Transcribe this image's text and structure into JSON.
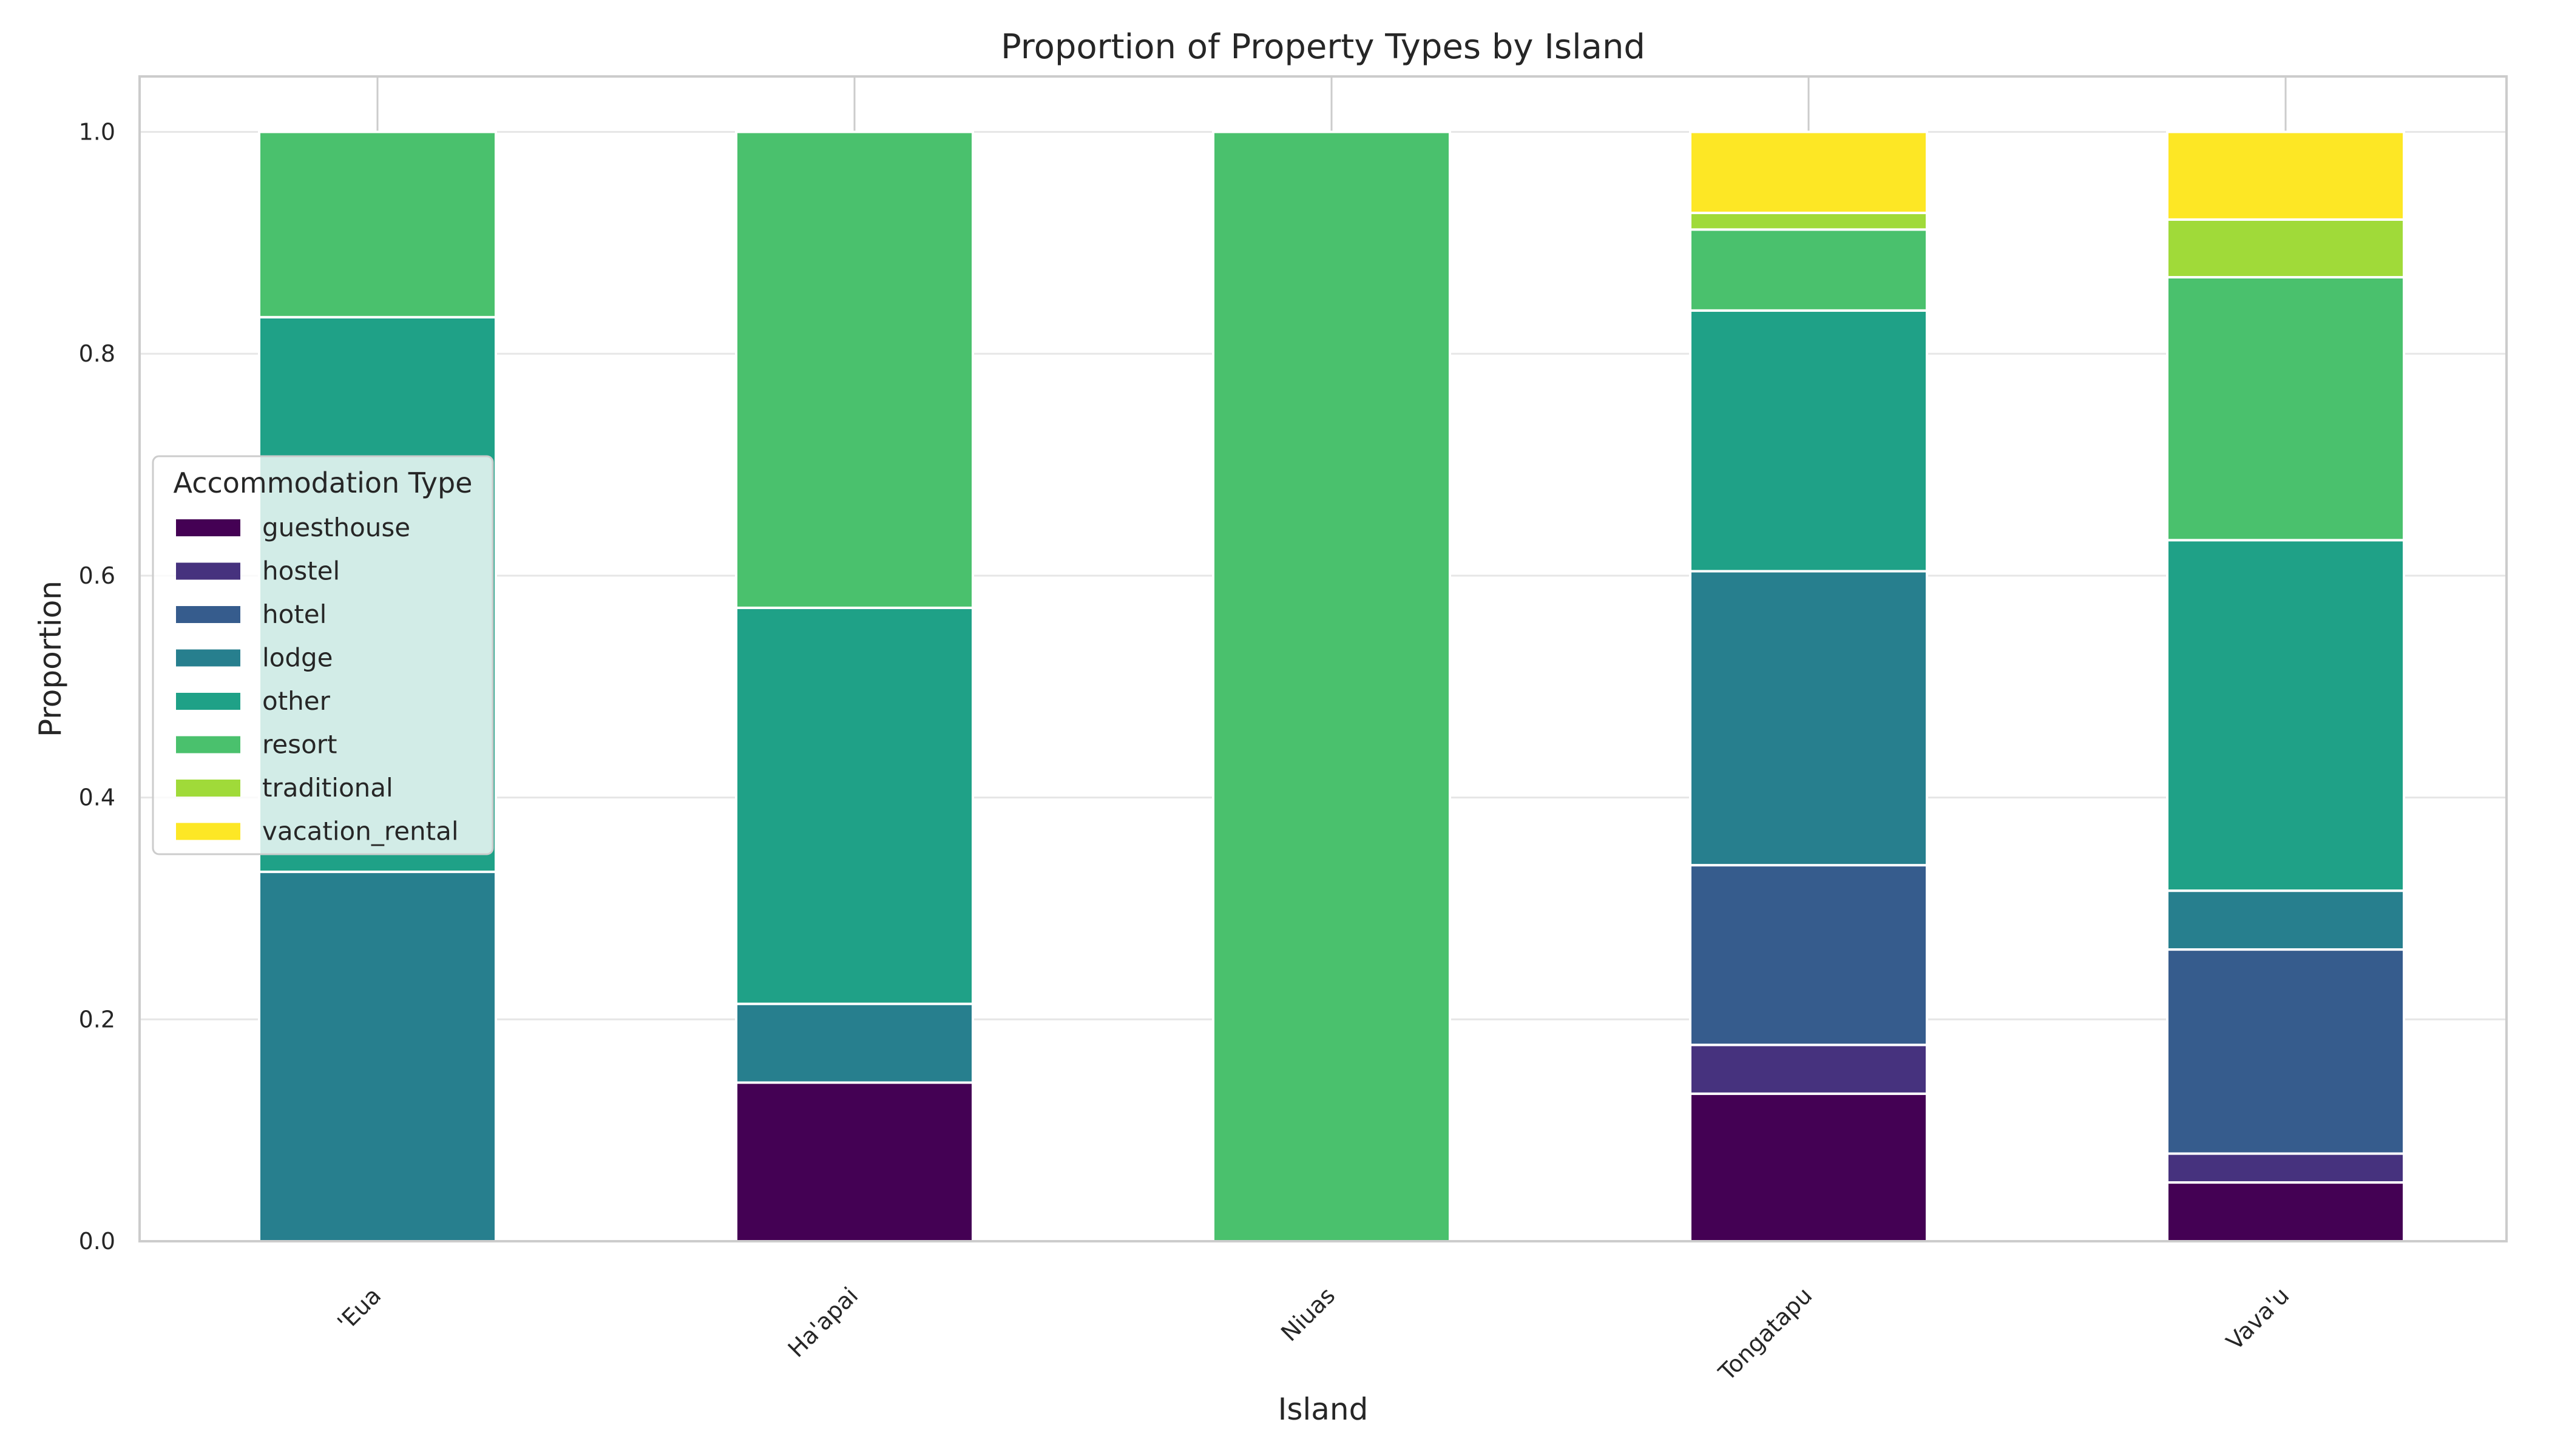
{
  "chart_data": {
    "type": "bar",
    "stacked": true,
    "title": "Proportion of Property Types by Island",
    "xlabel": "Island",
    "ylabel": "Proportion",
    "categories": [
      "'Eua",
      "Ha'apai",
      "Niuas",
      "Tongatapu",
      "Vava'u"
    ],
    "ylim": [
      0,
      1.05
    ],
    "yticks": [
      "0.0",
      "0.2",
      "0.4",
      "0.6",
      "0.8",
      "1.0"
    ],
    "grid": true,
    "legend": {
      "title": "Accommodation Type",
      "placement": "center-left"
    },
    "series": [
      {
        "name": "guesthouse",
        "color": "#440154",
        "values": [
          0,
          0.143,
          0,
          0.133,
          0.053
        ]
      },
      {
        "name": "hostel",
        "color": "#46327e",
        "values": [
          0,
          0,
          0,
          0.044,
          0.026
        ]
      },
      {
        "name": "hotel",
        "color": "#365c8d",
        "values": [
          0,
          0,
          0,
          0.162,
          0.184
        ]
      },
      {
        "name": "lodge",
        "color": "#277f8e",
        "values": [
          0.333,
          0.071,
          0,
          0.265,
          0.053
        ]
      },
      {
        "name": "other",
        "color": "#1fa187",
        "values": [
          0.5,
          0.357,
          0,
          0.235,
          0.316
        ]
      },
      {
        "name": "resort",
        "color": "#4ac16d",
        "values": [
          0.167,
          0.429,
          1.0,
          0.073,
          0.237
        ]
      },
      {
        "name": "traditional",
        "color": "#a0da39",
        "values": [
          0,
          0,
          0,
          0.015,
          0.052
        ]
      },
      {
        "name": "vacation_rental",
        "color": "#fde725",
        "values": [
          0,
          0,
          0,
          0.073,
          0.079
        ]
      }
    ]
  }
}
